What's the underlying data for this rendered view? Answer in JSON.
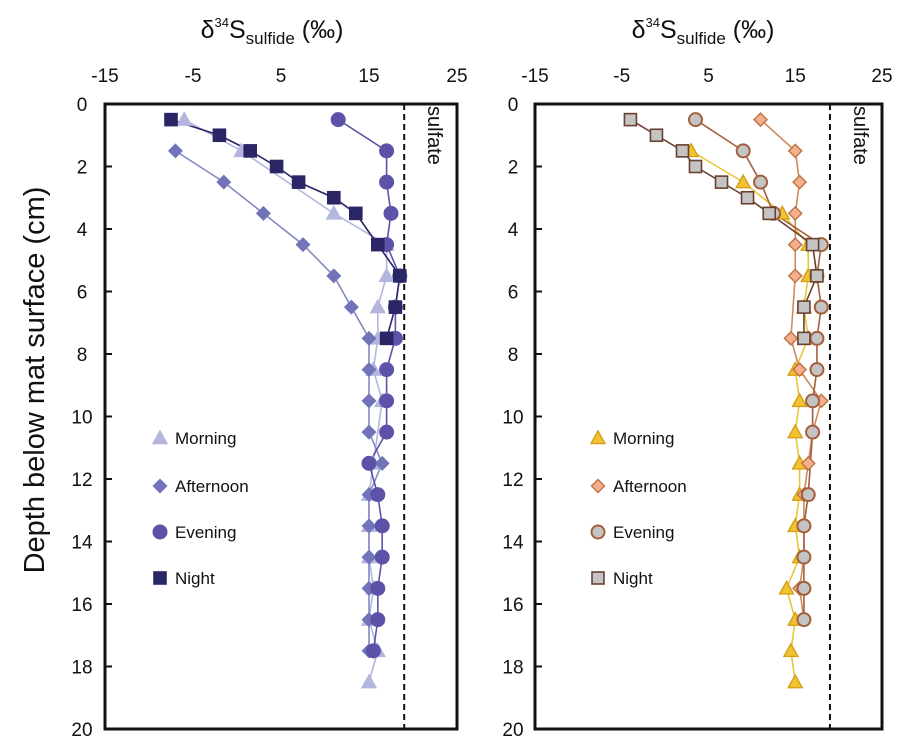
{
  "y_axis_label": "Depth below mat surface (cm)",
  "title_parts": {
    "delta": "δ",
    "mass": "34",
    "element": "S",
    "subscript": "sulfide",
    "units": "(‰)"
  },
  "sulfate_label": "sulfate",
  "chart_data": [
    {
      "type": "scatter",
      "panel": "left",
      "xlim": [
        -15,
        25
      ],
      "xticks": [
        -15,
        -5,
        5,
        15,
        25
      ],
      "ylim": [
        0,
        20
      ],
      "yticks": [
        0,
        2,
        4,
        6,
        8,
        10,
        12,
        14,
        16,
        18,
        20
      ],
      "y_inverted": true,
      "reference_line": {
        "x": 19,
        "label": "sulfate",
        "style": "dashed"
      },
      "legend_position": "lower-left",
      "series": [
        {
          "name": "Morning",
          "marker": "triangle",
          "fill": "#b3b7dd",
          "stroke": "#b3b7dd",
          "line": "#b3b7dd",
          "x": [
            -6,
            0.5,
            11,
            17,
            17,
            16,
            16,
            15.5,
            16.5,
            15.5,
            15,
            15,
            15,
            15.5,
            15,
            16,
            15
          ],
          "y": [
            0.5,
            1.5,
            3.5,
            4.5,
            5.5,
            6.5,
            7.5,
            8.5,
            9.5,
            11.5,
            12.5,
            13.5,
            14.5,
            15.5,
            16.5,
            17.5,
            18.5
          ]
        },
        {
          "name": "Afternoon",
          "marker": "diamond",
          "fill": "#7174b8",
          "stroke": "#7174b8",
          "line": "#8488c4",
          "x": [
            -7,
            -1.5,
            3,
            7.5,
            11,
            13,
            15,
            15,
            15,
            15,
            16.5,
            15,
            15,
            15,
            15,
            15,
            15
          ],
          "y": [
            1.5,
            2.5,
            3.5,
            4.5,
            5.5,
            6.5,
            7.5,
            8.5,
            9.5,
            10.5,
            11.5,
            12.5,
            13.5,
            14.5,
            15.5,
            16.5,
            17.5
          ]
        },
        {
          "name": "Evening",
          "marker": "circle",
          "fill": "#5c53a9",
          "stroke": "#5c53a9",
          "line": "#5c53a9",
          "x": [
            11.5,
            17,
            17,
            17.5,
            17,
            18.5,
            18,
            18,
            17,
            17,
            17,
            15,
            16,
            16.5,
            16.5,
            16,
            16,
            15.5
          ],
          "y": [
            0.5,
            1.5,
            2.5,
            3.5,
            4.5,
            5.5,
            6.5,
            7.5,
            8.5,
            9.5,
            10.5,
            11.5,
            12.5,
            13.5,
            14.5,
            15.5,
            16.5,
            17.5
          ]
        },
        {
          "name": "Night",
          "marker": "square",
          "fill": "#2b2666",
          "stroke": "#2b2666",
          "line": "#2b2666",
          "x": [
            -7.5,
            -2,
            1.5,
            4.5,
            7,
            11,
            13.5,
            16,
            18.5,
            18,
            17
          ],
          "y": [
            0.5,
            1.0,
            1.5,
            2.0,
            2.5,
            3.0,
            3.5,
            4.5,
            5.5,
            6.5,
            7.5
          ]
        }
      ]
    },
    {
      "type": "scatter",
      "panel": "right",
      "xlim": [
        -15,
        25
      ],
      "xticks": [
        -15,
        -5,
        5,
        15,
        25
      ],
      "ylim": [
        0,
        20
      ],
      "yticks": [
        0,
        2,
        4,
        6,
        8,
        10,
        12,
        14,
        16,
        18,
        20
      ],
      "y_inverted": true,
      "reference_line": {
        "x": 19,
        "label": "sulfate",
        "style": "dashed"
      },
      "legend_position": "lower-left",
      "series": [
        {
          "name": "Morning",
          "marker": "triangle",
          "fill": "#f1c232",
          "stroke": "#d4a017",
          "line": "#eac53a",
          "x": [
            3,
            9,
            13.5,
            16.5,
            16.5,
            16,
            16.5,
            15,
            15.5,
            15,
            15.5,
            15.5,
            15,
            15.5,
            14,
            15,
            14.5,
            15
          ],
          "y": [
            1.5,
            2.5,
            3.5,
            4.5,
            5.5,
            6.5,
            7.5,
            8.5,
            9.5,
            10.5,
            11.5,
            12.5,
            13.5,
            14.5,
            15.5,
            16.5,
            17.5,
            18.5
          ]
        },
        {
          "name": "Afternoon",
          "marker": "diamond",
          "fill": "#f3b08e",
          "stroke": "#c0713f",
          "line": "#cf8a5d",
          "x": [
            11,
            15,
            15.5,
            15,
            15,
            15,
            14.5,
            15.5,
            18,
            17,
            16.5,
            16,
            16,
            16,
            15.5,
            16
          ],
          "y": [
            0.5,
            1.5,
            2.5,
            3.5,
            4.5,
            5.5,
            7.5,
            8.5,
            9.5,
            10.5,
            11.5,
            12.5,
            13.5,
            14.5,
            15.5,
            16.5
          ]
        },
        {
          "name": "Evening",
          "marker": "circle",
          "fill": "#c4c4c4",
          "stroke": "#a35f3b",
          "line": "#a35f3b",
          "x": [
            3.5,
            9,
            11,
            12.5,
            18,
            17.5,
            18,
            17.5,
            17.5,
            17,
            17,
            16.5,
            16,
            16,
            16,
            16
          ],
          "y": [
            0.5,
            1.5,
            2.5,
            3.5,
            4.5,
            5.5,
            6.5,
            7.5,
            8.5,
            9.5,
            10.5,
            12.5,
            13.5,
            14.5,
            15.5,
            16.5
          ]
        },
        {
          "name": "Night",
          "marker": "square",
          "fill": "#c4c4c4",
          "stroke": "#6a4030",
          "line": "#6a4030",
          "x": [
            -4,
            -1,
            2,
            3.5,
            6.5,
            9.5,
            12,
            17,
            17.5,
            16,
            16
          ],
          "y": [
            0.5,
            1.0,
            1.5,
            2.0,
            2.5,
            3.0,
            3.5,
            4.5,
            5.5,
            6.5,
            7.5
          ]
        }
      ]
    }
  ]
}
